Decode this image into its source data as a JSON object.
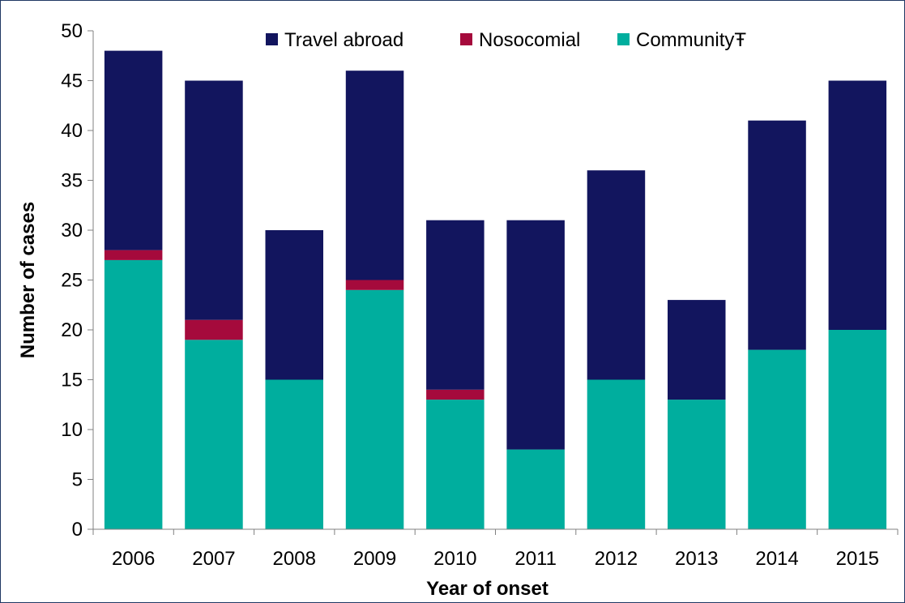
{
  "chart_data": {
    "type": "bar",
    "stacked": true,
    "categories": [
      "2006",
      "2007",
      "2008",
      "2009",
      "2010",
      "2011",
      "2012",
      "2013",
      "2014",
      "2015"
    ],
    "series": [
      {
        "name": "CommunityŦ",
        "color": "#00ae9e",
        "values": [
          27,
          19,
          15,
          24,
          13,
          8,
          15,
          13,
          18,
          20
        ]
      },
      {
        "name": "Nosocomial",
        "color": "#a50a3c",
        "values": [
          1,
          2,
          0,
          1,
          1,
          0,
          0,
          0,
          0,
          0
        ]
      },
      {
        "name": "Travel abroad",
        "color": "#12155e",
        "values": [
          20,
          24,
          15,
          21,
          17,
          23,
          21,
          10,
          23,
          25
        ]
      }
    ],
    "legend_order": [
      "Travel abroad",
      "Nosocomial",
      "CommunityŦ"
    ],
    "legend_position": "top-right",
    "xlabel": "Year of onset",
    "ylabel": "Number of cases",
    "ylim": [
      0,
      50
    ],
    "yticks": [
      "0",
      "5",
      "10",
      "15",
      "20",
      "25",
      "30",
      "35",
      "40",
      "45",
      "50"
    ],
    "grid": false
  }
}
